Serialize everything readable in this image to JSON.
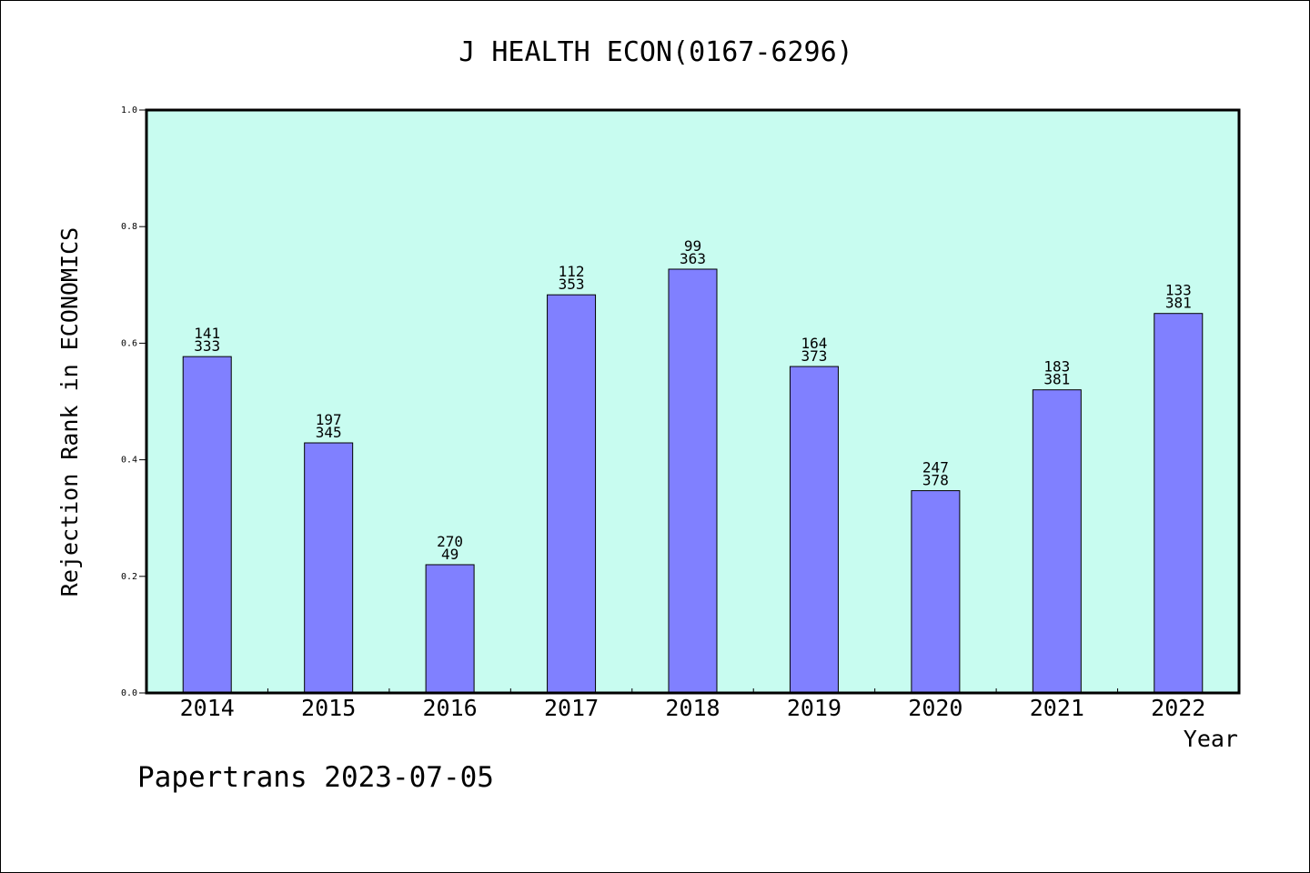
{
  "chart_data": {
    "type": "bar",
    "title": "J HEALTH ECON(0167-6296)",
    "xlabel": "Year",
    "ylabel": "Rejection Rank in ECONOMICS",
    "ylim": [
      0,
      1.0
    ],
    "yticks": [
      "0.0",
      "0.2",
      "0.4",
      "0.6",
      "0.8",
      "1.0"
    ],
    "categories": [
      "2014",
      "2015",
      "2016",
      "2017",
      "2018",
      "2019",
      "2020",
      "2021",
      "2022"
    ],
    "values": [
      0.577,
      0.429,
      0.22,
      0.683,
      0.727,
      0.56,
      0.347,
      0.52,
      0.651
    ],
    "labels_top": [
      "141",
      "197",
      "270",
      "112",
      "99",
      "164",
      "247",
      "183",
      "133"
    ],
    "labels_bottom": [
      "333",
      "345",
      "49",
      "353",
      "363",
      "373",
      "378",
      "381",
      "381"
    ],
    "bar_color": "#8080ff",
    "plot_background": "#c8fcf0",
    "grid": false
  },
  "footer": {
    "watermark": "Papertrans 2023-07-05"
  }
}
